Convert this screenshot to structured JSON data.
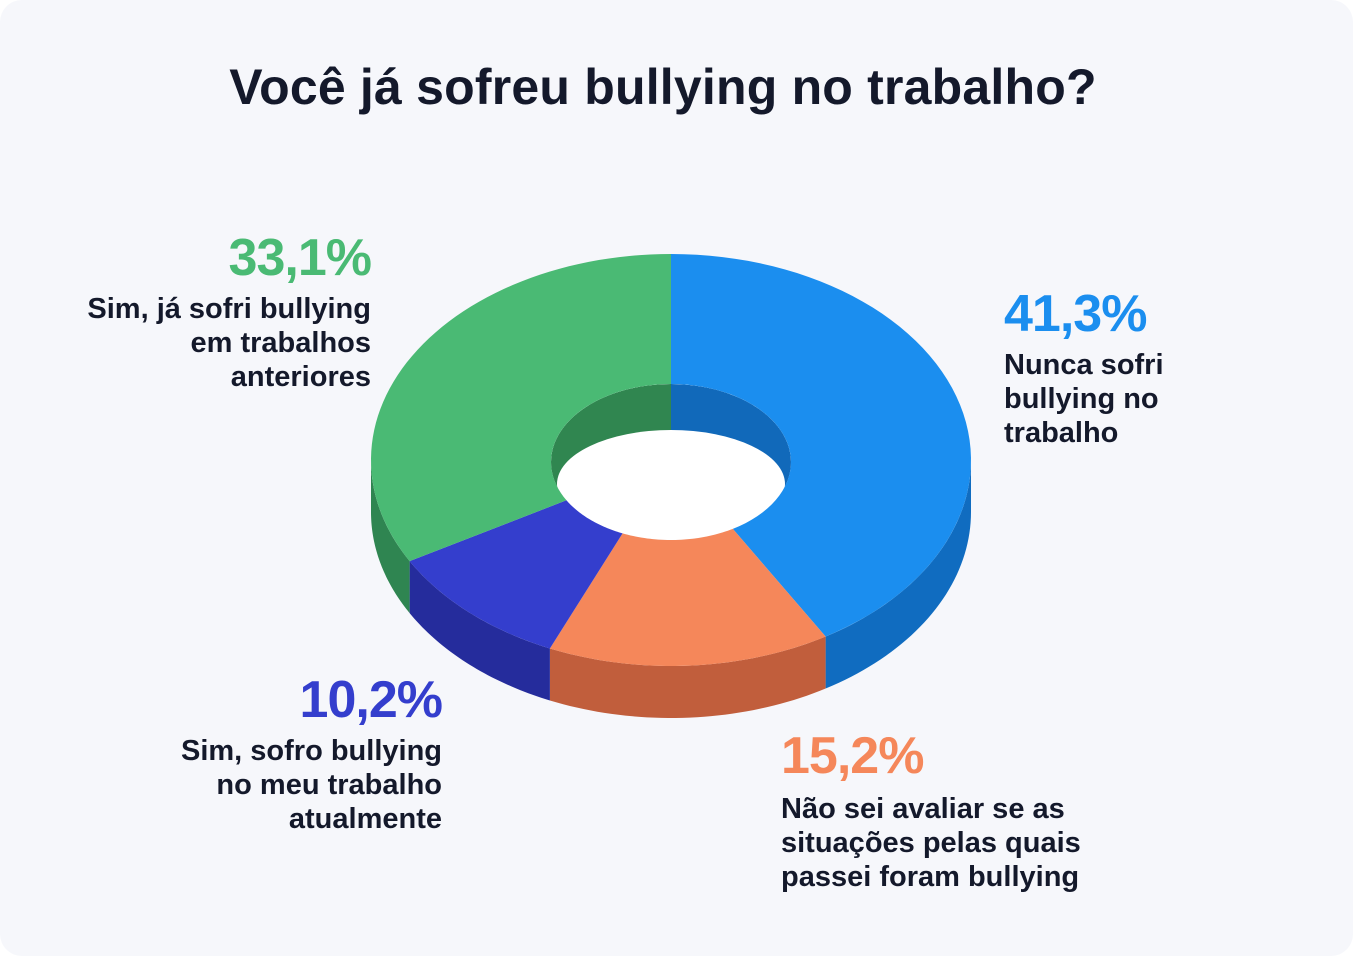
{
  "chart_data": {
    "type": "pie",
    "title": "Você já sofreu bullying no trabalho?",
    "slices": [
      {
        "label": "Nunca sofri bullying no trabalho",
        "value_label": "41,3%",
        "value": 41.3,
        "color": "#1b8eef",
        "side_color": "#106cc0",
        "inner_color": "#1169ba"
      },
      {
        "label": "Não sei avaliar se as situações pelas quais passei foram bullying",
        "value_label": "15,2%",
        "value": 15.2,
        "color": "#f5875a",
        "side_color": "#c15e3c",
        "inner_color": "#c56445"
      },
      {
        "label": "Sim, sofro bullying no meu trabalho atualmente",
        "value_label": "10,2%",
        "value": 10.2,
        "color": "#343ecd",
        "side_color": "#252c9c",
        "inner_color": "#262d9e"
      },
      {
        "label": "Sim, já sofri bullying em trabalhos anteriores",
        "value_label": "33,1%",
        "value": 33.1,
        "color": "#4aba74",
        "side_color": "#2f8551",
        "inner_color": "#308650"
      }
    ]
  },
  "labels": {
    "s0_pct": "41,3%",
    "s0_text": "Nunca sofri\nbullying no\ntrabalho",
    "s1_pct": "15,2%",
    "s1_text": "Não sei avaliar se as\nsituações pelas quais\npassei foram bullying",
    "s2_pct": "10,2%",
    "s2_text": "Sim, sofro bullying\nno meu trabalho\natualmente",
    "s3_pct": "33,1%",
    "s3_text": "Sim, já sofri bullying\nem trabalhos\nanteriores"
  },
  "colors": {
    "title": "#14192b",
    "background": "#f6f7fb",
    "blue": "#1b8eef",
    "orange": "#f5875a",
    "indigo": "#343ecd",
    "green": "#4aba74"
  }
}
